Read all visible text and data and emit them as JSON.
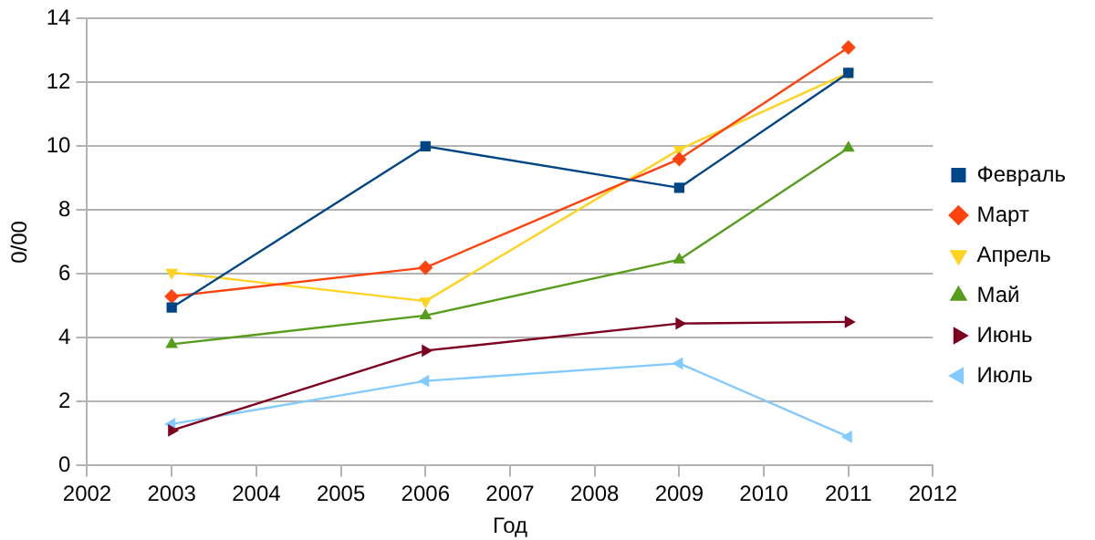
{
  "chart_data": {
    "type": "line",
    "xlabel": "Год",
    "ylabel": "0/00",
    "x": [
      2003,
      2006,
      2009,
      2011
    ],
    "xlim": [
      2002,
      2012
    ],
    "xticks": [
      2002,
      2003,
      2004,
      2005,
      2006,
      2007,
      2008,
      2009,
      2010,
      2011,
      2012
    ],
    "ylim": [
      0,
      14
    ],
    "yticks": [
      0,
      2,
      4,
      6,
      8,
      10,
      12,
      14
    ],
    "grid": "y",
    "legend": "right",
    "line_style": "solid",
    "series": [
      {
        "name": "Февраль",
        "color": "#004586",
        "marker": "square",
        "values": [
          4.95,
          10,
          8.7,
          12.3
        ]
      },
      {
        "name": "Март",
        "color": "#ff420e",
        "marker": "diamond",
        "values": [
          5.3,
          6.2,
          9.6,
          13.1
        ]
      },
      {
        "name": "Апрель",
        "color": "#ffd320",
        "marker": "triangle",
        "values": [
          6.05,
          5.15,
          9.9,
          12.3
        ]
      },
      {
        "name": "Май",
        "color": "#579d1c",
        "marker": "triangle",
        "values": [
          3.8,
          4.7,
          6.45,
          9.95
        ]
      },
      {
        "name": "Июнь",
        "color": "#7e0021",
        "marker": "triangle",
        "values": [
          1.1,
          3.6,
          4.45,
          4.5
        ]
      },
      {
        "name": "Июль",
        "color": "#83caff",
        "marker": "triangle",
        "values": [
          1.3,
          2.65,
          3.2,
          0.9
        ]
      }
    ]
  }
}
